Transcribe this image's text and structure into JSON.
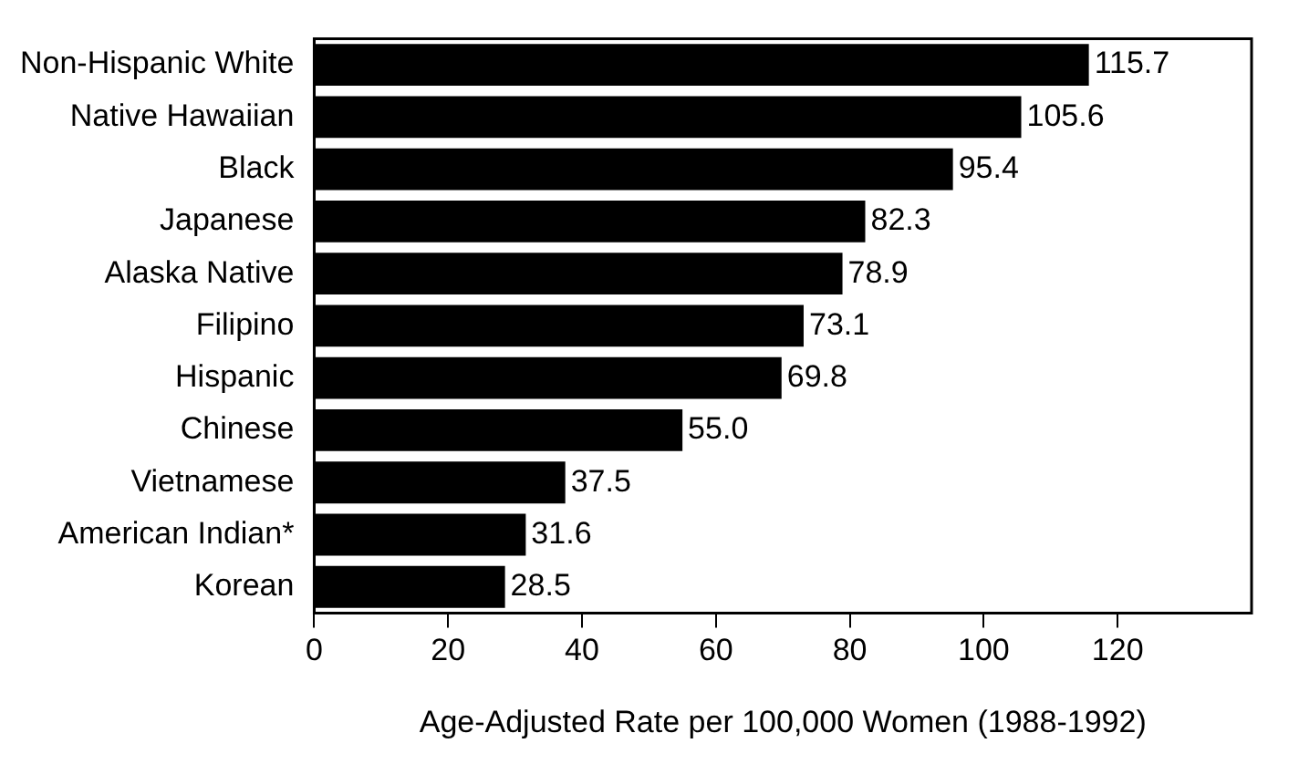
{
  "chart_data": {
    "type": "bar",
    "orientation": "horizontal",
    "xlabel": "Age-Adjusted Rate per 100,000 Women (1988-1992)",
    "categories": [
      "Non-Hispanic White",
      "Native Hawaiian",
      "Black",
      "Japanese",
      "Alaska Native",
      "Filipino",
      "Hispanic",
      "Chinese",
      "Vietnamese",
      "American Indian*",
      "Korean"
    ],
    "values": [
      115.7,
      105.6,
      95.4,
      82.3,
      78.9,
      73.1,
      69.8,
      55.0,
      37.5,
      31.6,
      28.5
    ],
    "value_labels": [
      "115.7",
      "105.6",
      "95.4",
      "82.3",
      "78.9",
      "73.1",
      "69.8",
      "55.0",
      "37.5",
      "31.6",
      "28.5"
    ],
    "color": "#000000",
    "xlim": [
      0,
      140
    ],
    "xticks": [
      0,
      20,
      40,
      60,
      80,
      100,
      120
    ],
    "grid": false,
    "legend": false
  }
}
